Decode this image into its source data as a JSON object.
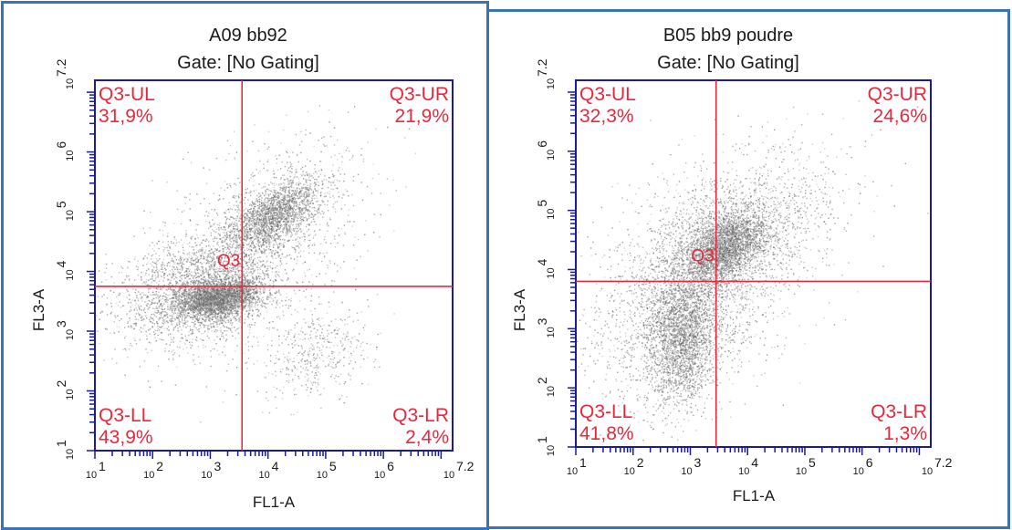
{
  "chart_data": [
    {
      "type": "scatter",
      "title": "A09 bb92",
      "subtitle": "Gate: [No Gating]",
      "xlabel": "FL1-A",
      "ylabel": "FL3-A",
      "scale": "log10",
      "xlim": [
        1,
        7.2
      ],
      "ylim": [
        1,
        7.2
      ],
      "x_ticks": [
        {
          "base": "10",
          "exp": "1"
        },
        {
          "base": "10",
          "exp": "2"
        },
        {
          "base": "10",
          "exp": "3"
        },
        {
          "base": "10",
          "exp": "4"
        },
        {
          "base": "10",
          "exp": "5"
        },
        {
          "base": "10",
          "exp": "6"
        },
        {
          "base": "10",
          "exp": "7.2"
        }
      ],
      "y_ticks": [
        {
          "base": "10",
          "exp": "1"
        },
        {
          "base": "10",
          "exp": "2"
        },
        {
          "base": "10",
          "exp": "3"
        },
        {
          "base": "10",
          "exp": "4"
        },
        {
          "base": "10",
          "exp": "5"
        },
        {
          "base": "10",
          "exp": "6"
        },
        {
          "base": "10",
          "exp": "7.2"
        }
      ],
      "gate_name": "Q3",
      "gate_x": 3.55,
      "gate_y": 3.75,
      "quadrants": [
        {
          "name": "Q3-UL",
          "value": "31,9%"
        },
        {
          "name": "Q3-UR",
          "value": "21,9%"
        },
        {
          "name": "Q3-LL",
          "value": "43,9%"
        },
        {
          "name": "Q3-LR",
          "value": "2,4%"
        }
      ],
      "populations": [
        {
          "x": 3.1,
          "y": 3.55,
          "sx": 0.35,
          "sy": 0.16,
          "rho": 0.25,
          "weight": 0.33
        },
        {
          "x": 4.1,
          "y": 4.95,
          "sx": 0.4,
          "sy": 0.3,
          "rho": 0.6,
          "weight": 0.22
        },
        {
          "x": 2.8,
          "y": 3.7,
          "sx": 0.7,
          "sy": 0.45,
          "rho": 0.3,
          "weight": 0.25
        },
        {
          "x": 3.8,
          "y": 4.5,
          "sx": 0.9,
          "sy": 0.8,
          "rho": 0.5,
          "weight": 0.15
        },
        {
          "x": 4.8,
          "y": 2.6,
          "sx": 0.5,
          "sy": 0.4,
          "rho": 0.3,
          "weight": 0.05
        }
      ]
    },
    {
      "type": "scatter",
      "title": "B05 bb9 poudre",
      "subtitle": "Gate: [No Gating]",
      "xlabel": "FL1-A",
      "ylabel": "FL3-A",
      "scale": "log10",
      "xlim": [
        1,
        7.2
      ],
      "ylim": [
        1,
        7.2
      ],
      "x_ticks": [
        {
          "base": "10",
          "exp": "1"
        },
        {
          "base": "10",
          "exp": "2"
        },
        {
          "base": "10",
          "exp": "3"
        },
        {
          "base": "10",
          "exp": "4"
        },
        {
          "base": "10",
          "exp": "5"
        },
        {
          "base": "10",
          "exp": "6"
        },
        {
          "base": "10",
          "exp": "7.2"
        }
      ],
      "y_ticks": [
        {
          "base": "10",
          "exp": "1"
        },
        {
          "base": "10",
          "exp": "2"
        },
        {
          "base": "10",
          "exp": "3"
        },
        {
          "base": "10",
          "exp": "4"
        },
        {
          "base": "10",
          "exp": "5"
        },
        {
          "base": "10",
          "exp": "6"
        },
        {
          "base": "10",
          "exp": "7.2"
        }
      ],
      "gate_name": "Q3",
      "gate_x": 3.45,
      "gate_y": 3.8,
      "quadrants": [
        {
          "name": "Q3-UL",
          "value": "32,3%"
        },
        {
          "name": "Q3-UR",
          "value": "24,6%"
        },
        {
          "name": "Q3-LL",
          "value": "41,8%"
        },
        {
          "name": "Q3-LR",
          "value": "1,3%"
        }
      ],
      "populations": [
        {
          "x": 3.6,
          "y": 4.4,
          "sx": 0.35,
          "sy": 0.28,
          "rho": 0.4,
          "weight": 0.28
        },
        {
          "x": 2.85,
          "y": 2.85,
          "sx": 0.3,
          "sy": 0.55,
          "rho": 0.1,
          "weight": 0.25
        },
        {
          "x": 3.0,
          "y": 3.6,
          "sx": 0.8,
          "sy": 0.9,
          "rho": 0.3,
          "weight": 0.3
        },
        {
          "x": 3.9,
          "y": 4.6,
          "sx": 0.9,
          "sy": 0.7,
          "rho": 0.5,
          "weight": 0.17
        }
      ]
    }
  ]
}
